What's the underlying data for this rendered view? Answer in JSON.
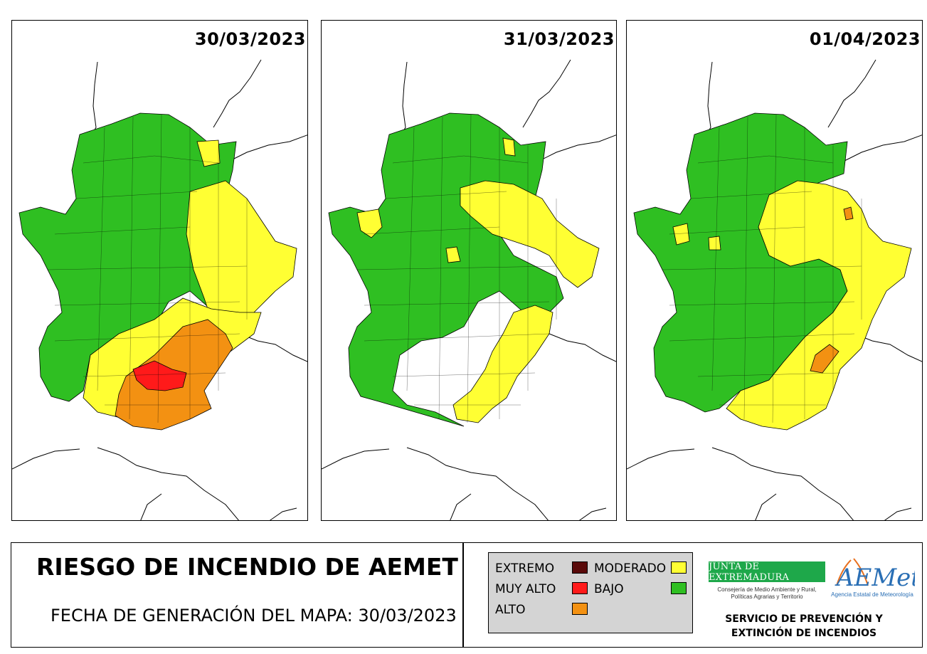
{
  "maps": [
    {
      "date": "30/03/2023"
    },
    {
      "date": "31/03/2023"
    },
    {
      "date": "01/04/2023"
    }
  ],
  "footer": {
    "title": "RIESGO DE INCENDIO DE AEMET",
    "generation_date": "FECHA DE GENERACIÓN DEL MAPA: 30/03/2023"
  },
  "legend": {
    "items": [
      {
        "label": "EXTREMO",
        "color": "#5a0a0a"
      },
      {
        "label": "MUY ALTO",
        "color": "#ff1a1a"
      },
      {
        "label": "ALTO",
        "color": "#f39112"
      },
      {
        "label": "MODERADO",
        "color": "#ffff33"
      },
      {
        "label": "BAJO",
        "color": "#2fbf22"
      }
    ]
  },
  "logos": {
    "junta_title": "JUNTA DE EXTREMADURA",
    "junta_subtitle_1": "Consejería de Medio Ambiente y Rural,",
    "junta_subtitle_2": "Políticas Agrarias y Territorio",
    "aemet_wordmark": "AEMet",
    "aemet_subtitle": "Agencia Estatal de Meteorología"
  },
  "service": {
    "line1": "SERVICIO DE PREVENCIÓN Y",
    "line2": "EXTINCIÓN DE INCENDIOS"
  },
  "colors": {
    "bajo": "#2fbf22",
    "moderado": "#ffff33",
    "alto": "#f39112",
    "muy_alto": "#ff1a1a",
    "extremo": "#5a0a0a",
    "junta_green": "#1ea84a",
    "aemet_blue": "#2a6fb5"
  }
}
